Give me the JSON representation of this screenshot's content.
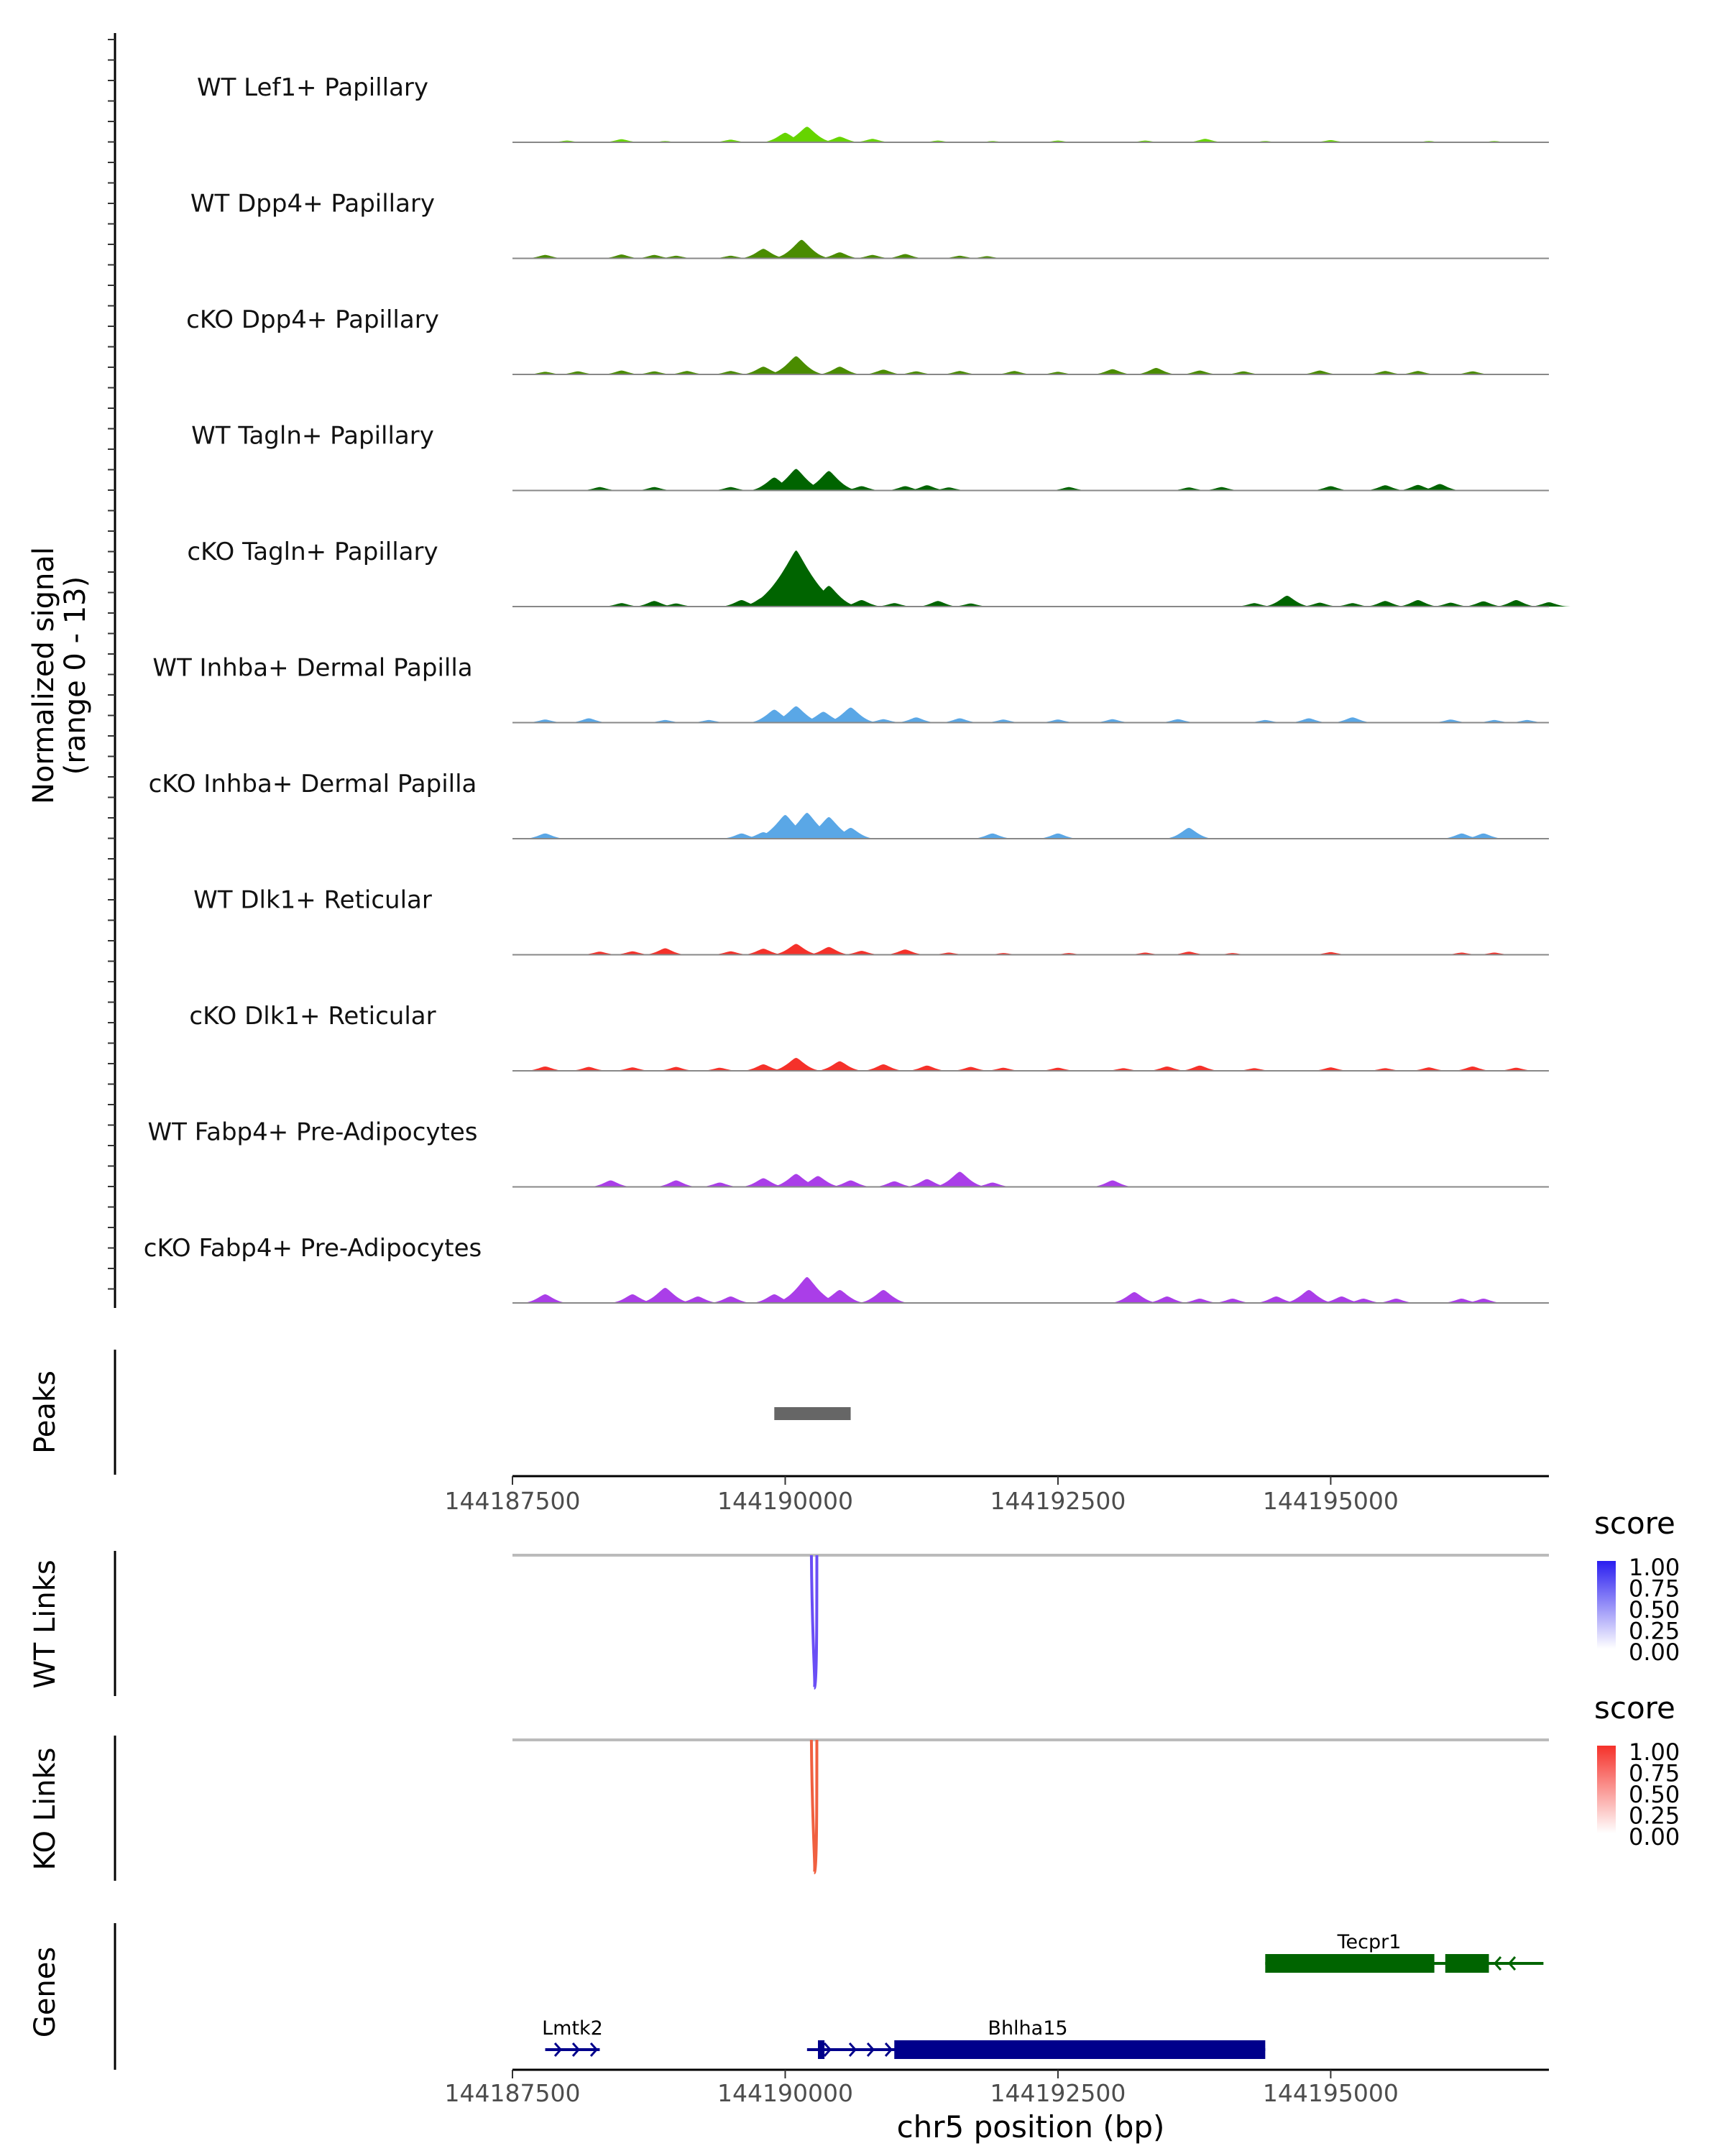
{
  "chart_data": {
    "type": "genome-coverage",
    "region": {
      "chrom": "chr5",
      "start": 144187500,
      "end": 144197000
    },
    "ylabel": "Normalized signal\n(range 0 - 13)",
    "xlabel": "chr5 position (bp)",
    "xticks": [
      144187500,
      144190000,
      144192500,
      144195000
    ],
    "tracks": [
      {
        "label": "WT Lef1+ Papillary",
        "color": "#66d400",
        "peaks": [
          [
            144188000,
            0.4
          ],
          [
            144188500,
            0.7
          ],
          [
            144188900,
            0.3
          ],
          [
            144189500,
            0.6
          ],
          [
            144190000,
            2.2
          ],
          [
            144190200,
            3.6
          ],
          [
            144190500,
            1.3
          ],
          [
            144190800,
            0.8
          ],
          [
            144191400,
            0.4
          ],
          [
            144191900,
            0.3
          ],
          [
            144192500,
            0.4
          ],
          [
            144193300,
            0.4
          ],
          [
            144193850,
            0.8
          ],
          [
            144194400,
            0.3
          ],
          [
            144195000,
            0.5
          ],
          [
            144195900,
            0.3
          ],
          [
            144196500,
            0.3
          ]
        ]
      },
      {
        "label": "WT Dpp4+ Papillary",
        "color": "#4a8c00",
        "peaks": [
          [
            144187800,
            0.8
          ],
          [
            144188500,
            0.9
          ],
          [
            144188800,
            0.8
          ],
          [
            144189000,
            0.6
          ],
          [
            144189500,
            0.6
          ],
          [
            144189800,
            2.2
          ],
          [
            144190150,
            4.3
          ],
          [
            144190500,
            1.4
          ],
          [
            144190800,
            0.8
          ],
          [
            144191100,
            1.0
          ],
          [
            144191600,
            0.6
          ],
          [
            144191850,
            0.5
          ]
        ]
      },
      {
        "label": "cKO Dpp4+ Papillary",
        "color": "#4a8c00",
        "peaks": [
          [
            144187800,
            0.6
          ],
          [
            144188100,
            0.7
          ],
          [
            144188500,
            0.9
          ],
          [
            144188800,
            0.7
          ],
          [
            144189100,
            0.8
          ],
          [
            144189500,
            0.8
          ],
          [
            144189800,
            1.8
          ],
          [
            144190100,
            4.2
          ],
          [
            144190500,
            1.8
          ],
          [
            144190900,
            1.1
          ],
          [
            144191200,
            0.7
          ],
          [
            144191600,
            0.8
          ],
          [
            144192100,
            0.8
          ],
          [
            144192500,
            0.6
          ],
          [
            144193000,
            1.2
          ],
          [
            144193400,
            1.5
          ],
          [
            144193800,
            0.9
          ],
          [
            144194200,
            0.7
          ],
          [
            144194900,
            0.9
          ],
          [
            144195500,
            0.8
          ],
          [
            144195800,
            0.8
          ],
          [
            144196300,
            0.7
          ]
        ]
      },
      {
        "label": "WT Tagln+ Papillary",
        "color": "#006400",
        "peaks": [
          [
            144188300,
            0.8
          ],
          [
            144188800,
            0.8
          ],
          [
            144189500,
            0.8
          ],
          [
            144189900,
            3.0
          ],
          [
            144190100,
            5.0
          ],
          [
            144190400,
            4.5
          ],
          [
            144190700,
            1.0
          ],
          [
            144191100,
            1.0
          ],
          [
            144191300,
            1.2
          ],
          [
            144191500,
            0.7
          ],
          [
            144192600,
            0.8
          ],
          [
            144193700,
            0.7
          ],
          [
            144194000,
            0.8
          ],
          [
            144195000,
            1.0
          ],
          [
            144195500,
            1.2
          ],
          [
            144195800,
            1.3
          ],
          [
            144196000,
            1.5
          ]
        ]
      },
      {
        "label": "cKO Tagln+ Papillary",
        "color": "#006400",
        "peaks": [
          [
            144188500,
            0.8
          ],
          [
            144188800,
            1.3
          ],
          [
            144189000,
            0.7
          ],
          [
            144189600,
            1.5
          ],
          [
            144189800,
            2.2
          ],
          [
            144190100,
            13.0
          ],
          [
            144190400,
            4.8
          ],
          [
            144190700,
            1.5
          ],
          [
            144191000,
            0.8
          ],
          [
            144191400,
            1.3
          ],
          [
            144191700,
            0.7
          ],
          [
            144194300,
            0.8
          ],
          [
            144194600,
            2.5
          ],
          [
            144194900,
            0.9
          ],
          [
            144195200,
            0.8
          ],
          [
            144195500,
            1.3
          ],
          [
            144195800,
            1.5
          ],
          [
            144196100,
            0.9
          ],
          [
            144196400,
            1.2
          ],
          [
            144196700,
            1.5
          ],
          [
            144197000,
            1.0
          ]
        ]
      },
      {
        "label": "WT Inhba+ Dermal Papilla",
        "color": "#5aa7e6",
        "peaks": [
          [
            144187800,
            0.7
          ],
          [
            144188200,
            1.0
          ],
          [
            144188900,
            0.6
          ],
          [
            144189300,
            0.6
          ],
          [
            144189900,
            3.0
          ],
          [
            144190100,
            3.8
          ],
          [
            144190350,
            2.5
          ],
          [
            144190600,
            3.5
          ],
          [
            144190900,
            0.8
          ],
          [
            144191200,
            1.2
          ],
          [
            144191600,
            1.0
          ],
          [
            144192000,
            0.7
          ],
          [
            144192500,
            0.7
          ],
          [
            144193000,
            0.8
          ],
          [
            144193600,
            0.8
          ],
          [
            144194400,
            0.6
          ],
          [
            144194800,
            1.0
          ],
          [
            144195200,
            1.2
          ],
          [
            144196100,
            0.7
          ],
          [
            144196500,
            0.6
          ],
          [
            144196800,
            0.6
          ]
        ]
      },
      {
        "label": "cKO Inhba+ Dermal Papilla",
        "color": "#5aa7e6",
        "peaks": [
          [
            144187800,
            1.2
          ],
          [
            144189600,
            1.2
          ],
          [
            144189800,
            1.5
          ],
          [
            144190000,
            5.5
          ],
          [
            144190200,
            6.0
          ],
          [
            144190400,
            5.0
          ],
          [
            144190600,
            2.5
          ],
          [
            144191900,
            1.2
          ],
          [
            144192500,
            1.2
          ],
          [
            144193700,
            2.5
          ],
          [
            144196200,
            1.2
          ],
          [
            144196400,
            1.2
          ]
        ]
      },
      {
        "label": "WT Dlk1+ Reticular",
        "color": "#f5312a",
        "peaks": [
          [
            144188300,
            0.7
          ],
          [
            144188600,
            0.8
          ],
          [
            144188900,
            1.5
          ],
          [
            144189500,
            0.8
          ],
          [
            144189800,
            1.4
          ],
          [
            144190100,
            2.5
          ],
          [
            144190400,
            1.8
          ],
          [
            144190700,
            0.9
          ],
          [
            144191100,
            1.2
          ],
          [
            144191500,
            0.5
          ],
          [
            144192000,
            0.4
          ],
          [
            144192600,
            0.4
          ],
          [
            144193300,
            0.5
          ],
          [
            144193700,
            0.7
          ],
          [
            144194100,
            0.4
          ],
          [
            144195000,
            0.6
          ],
          [
            144196200,
            0.5
          ],
          [
            144196500,
            0.5
          ]
        ]
      },
      {
        "label": "cKO Dlk1+ Reticular",
        "color": "#f5312a",
        "peaks": [
          [
            144187800,
            1.0
          ],
          [
            144188200,
            0.9
          ],
          [
            144188600,
            0.8
          ],
          [
            144189000,
            0.9
          ],
          [
            144189400,
            0.7
          ],
          [
            144189800,
            1.5
          ],
          [
            144190100,
            3.0
          ],
          [
            144190500,
            2.2
          ],
          [
            144190900,
            1.5
          ],
          [
            144191300,
            1.2
          ],
          [
            144191700,
            0.9
          ],
          [
            144192000,
            0.7
          ],
          [
            144192500,
            0.7
          ],
          [
            144193100,
            0.6
          ],
          [
            144193500,
            1.0
          ],
          [
            144193800,
            1.2
          ],
          [
            144194300,
            0.6
          ],
          [
            144195000,
            0.8
          ],
          [
            144195500,
            0.6
          ],
          [
            144195900,
            0.8
          ],
          [
            144196300,
            1.0
          ],
          [
            144196700,
            0.7
          ]
        ]
      },
      {
        "label": "WT Fabp4+ Pre-Adipocytes",
        "color": "#aa3ee8",
        "peaks": [
          [
            144188400,
            1.5
          ],
          [
            144189000,
            1.5
          ],
          [
            144189400,
            1.0
          ],
          [
            144189800,
            2.0
          ],
          [
            144190100,
            3.0
          ],
          [
            144190300,
            2.5
          ],
          [
            144190600,
            1.5
          ],
          [
            144191000,
            1.3
          ],
          [
            144191300,
            1.8
          ],
          [
            144191600,
            3.5
          ],
          [
            144191900,
            1.0
          ],
          [
            144193000,
            1.5
          ]
        ]
      },
      {
        "label": "cKO Fabp4+ Pre-Adipocytes",
        "color": "#aa3ee8",
        "peaks": [
          [
            144187800,
            2.0
          ],
          [
            144188600,
            2.0
          ],
          [
            144188900,
            3.5
          ],
          [
            144189200,
            1.5
          ],
          [
            144189500,
            1.5
          ],
          [
            144189900,
            2.0
          ],
          [
            144190200,
            6.0
          ],
          [
            144190500,
            3.0
          ],
          [
            144190900,
            3.0
          ],
          [
            144193200,
            2.5
          ],
          [
            144193500,
            1.5
          ],
          [
            144193800,
            1.0
          ],
          [
            144194100,
            1.0
          ],
          [
            144194500,
            1.5
          ],
          [
            144194800,
            3.0
          ],
          [
            144195100,
            1.5
          ],
          [
            144195300,
            1.0
          ],
          [
            144195600,
            1.0
          ],
          [
            144196200,
            1.0
          ],
          [
            144196400,
            1.0
          ]
        ]
      }
    ],
    "peaks_track": {
      "label": "Peaks",
      "color": "#666666",
      "regions": [
        [
          144189900,
          144190600
        ]
      ]
    },
    "links": [
      {
        "label": "WT Links",
        "legend_title": "score",
        "color": "#2a1ef0",
        "loop_color": "#6a4ef5",
        "legend_ticks": [
          "1.00",
          "0.75",
          "0.50",
          "0.25",
          "0.00"
        ],
        "loops": [
          {
            "start": 144190240,
            "end": 144190290,
            "score": 0.8
          }
        ]
      },
      {
        "label": "KO Links",
        "legend_title": "score",
        "color": "#f5312a",
        "loop_color": "#f06040",
        "legend_ticks": [
          "1.00",
          "0.75",
          "0.50",
          "0.25",
          "0.00"
        ],
        "loops": [
          {
            "start": 144190240,
            "end": 144190290,
            "score": 0.8
          }
        ]
      }
    ],
    "genes_track": {
      "label": "Genes",
      "genes": [
        {
          "name": "Tecpr1",
          "strand": "-",
          "color": "#006400",
          "row": 0,
          "start": 144194400,
          "end": 144196950,
          "exons": [
            [
              144194400,
              144195950
            ],
            [
              144196050,
              144196450
            ]
          ]
        },
        {
          "name": "Lmtk2",
          "strand": "+",
          "color": "#00008b",
          "row": 1,
          "start": 144187800,
          "end": 144188300,
          "exons": []
        },
        {
          "name": "Bhlha15",
          "strand": "+",
          "color": "#00008b",
          "row": 1,
          "start": 144190200,
          "end": 144194400,
          "exons": [
            [
              144190300,
              144190360
            ],
            [
              144191000,
              144194400
            ]
          ]
        }
      ]
    }
  }
}
